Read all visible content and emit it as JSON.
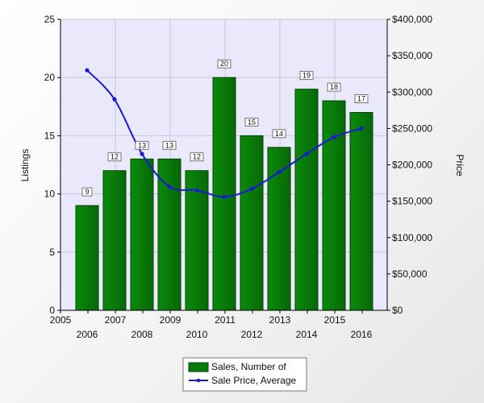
{
  "chart_data": {
    "type": "bar",
    "title": "",
    "categories": [
      "2006",
      "2007",
      "2008",
      "2009",
      "2010",
      "2011",
      "2012",
      "2013",
      "2014",
      "2015",
      "2016"
    ],
    "series": [
      {
        "name": "Sales, Number of",
        "kind": "bar",
        "axis": "left",
        "color": "#0a7a0a",
        "values": [
          9,
          12,
          13,
          13,
          12,
          20,
          15,
          14,
          19,
          18,
          17
        ],
        "labels": [
          "9",
          "12",
          "13",
          "13",
          "12",
          "20",
          "15",
          "14",
          "19",
          "18",
          "17"
        ]
      },
      {
        "name": "Sale Price, Average",
        "kind": "line",
        "axis": "right",
        "color": "#1a1ad6",
        "values": [
          330000,
          290000,
          215000,
          170000,
          165000,
          156000,
          167000,
          190000,
          215000,
          238000,
          250000
        ]
      }
    ],
    "left_axis": {
      "label": "Listings",
      "range": [
        0,
        25
      ],
      "ticks": [
        0,
        5,
        10,
        15,
        20,
        25
      ],
      "tick_labels": [
        "0",
        "5",
        "10",
        "15",
        "20",
        "25"
      ]
    },
    "right_axis": {
      "label": "Price",
      "range": [
        0,
        400000
      ],
      "ticks": [
        0,
        50000,
        100000,
        150000,
        200000,
        250000,
        300000,
        350000,
        400000
      ],
      "tick_labels": [
        "$0",
        "$50,000",
        "$100,000",
        "$150,000",
        "$200,000",
        "$250,000",
        "$300,000",
        "$350,000",
        "$400,000"
      ]
    },
    "x_axis": {
      "label": "",
      "upper_tick_labels": [
        "2005",
        "2007",
        "2009",
        "2011",
        "2013",
        "2015"
      ],
      "lower_tick_labels": [
        "2006",
        "2008",
        "2010",
        "2012",
        "2014",
        "2016"
      ]
    },
    "grid": true,
    "legend_position": "bottom-center",
    "colors": {
      "plot_background": "#e9e9fb",
      "grid": "#c8c8d8",
      "bar_border": "#004400"
    }
  }
}
